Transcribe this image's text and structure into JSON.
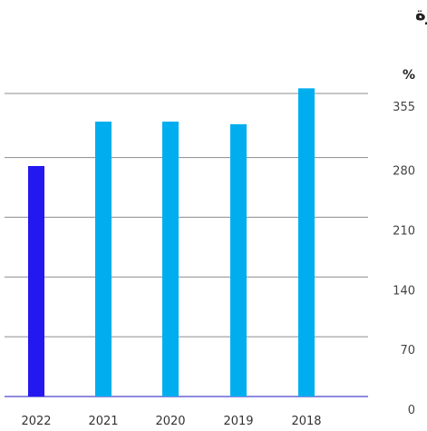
{
  "chart_data": {
    "type": "bar",
    "title": "تغطية الديون المتعثرة",
    "unit_label": "%",
    "categories": [
      "2022",
      "2021",
      "2020",
      "2019",
      "2018"
    ],
    "values": [
      270,
      322,
      322,
      319,
      361
    ],
    "y_ticks": [
      0,
      70,
      140,
      210,
      280,
      355
    ],
    "ylim": [
      0,
      355
    ],
    "grid": true,
    "colors": {
      "highlight": "#2318F0",
      "bar": "#00AEEF",
      "grid": "#8C8C8C",
      "baseline": "#6A63D6"
    }
  }
}
